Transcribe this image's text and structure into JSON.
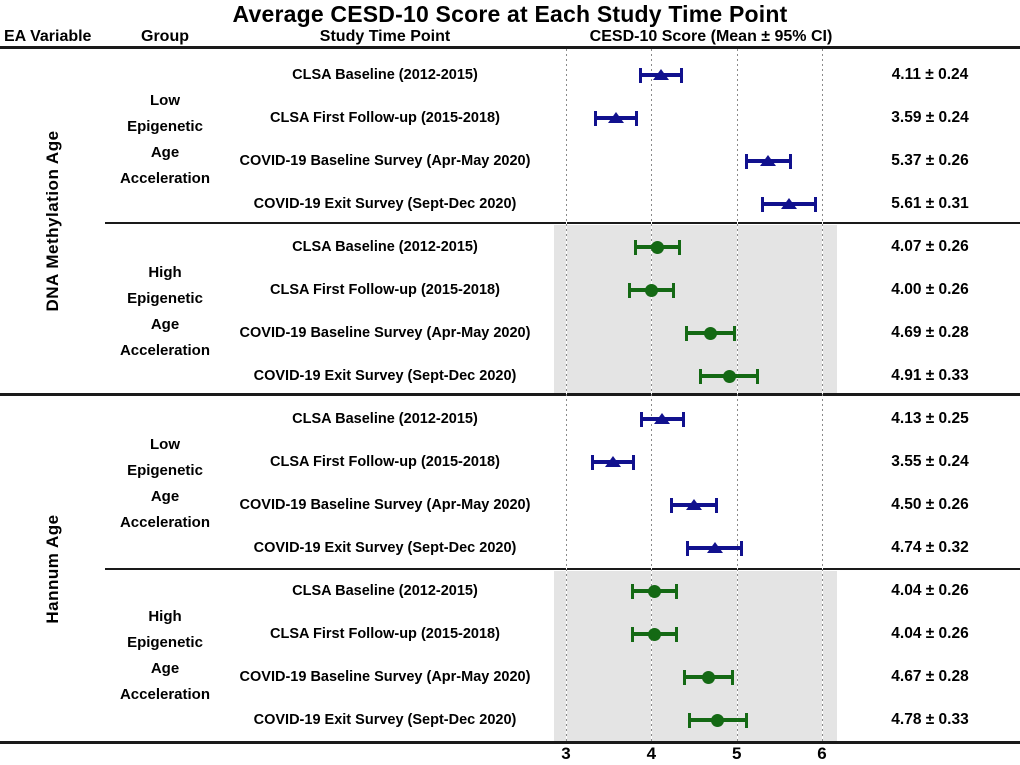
{
  "title": "Average CESD-10 Score at Each Study Time Point",
  "headers": {
    "ea_variable": "EA Variable",
    "group": "Group",
    "time_point": "Study Time Point",
    "score": "CESD-10 Score (Mean ± 95% CI)"
  },
  "colors": {
    "low_marker": "#11118e",
    "high_marker": "#146914",
    "high_panel_bg": "#e4e4e4",
    "line": "#1a1a1a",
    "gridline": "#8a8a8a"
  },
  "chart_data": {
    "type": "scatter",
    "subtype": "forest-plot",
    "title": "Average CESD-10 Score at Each Study Time Point",
    "xlabel": "CESD-10 Score (Mean ± 95% CI)",
    "xlim": [
      3,
      6
    ],
    "axis_ticks": [
      3,
      4,
      5,
      6
    ],
    "grid": "dotted-vertical",
    "legend": "none",
    "sections": [
      {
        "ea_variable": "DNA Methylation Age",
        "groups": [
          {
            "label": "Low Epigenetic Age Acceleration",
            "label_lines": [
              "Low",
              "Epigenetic",
              "Age",
              "Acceleration"
            ],
            "marker": "triangle",
            "color": "#11118e",
            "shaded": false,
            "rows": [
              {
                "time_point": "CLSA Baseline (2012-2015)",
                "mean": 4.11,
                "ci": 0.24,
                "value_text": "4.11 ± 0.24"
              },
              {
                "time_point": "CLSA First Follow-up (2015-2018)",
                "mean": 3.59,
                "ci": 0.24,
                "value_text": "3.59 ± 0.24"
              },
              {
                "time_point": "COVID-19 Baseline Survey (Apr-May 2020)",
                "mean": 5.37,
                "ci": 0.26,
                "value_text": "5.37 ± 0.26"
              },
              {
                "time_point": "COVID-19 Exit Survey (Sept-Dec 2020)",
                "mean": 5.61,
                "ci": 0.31,
                "value_text": "5.61 ± 0.31"
              }
            ]
          },
          {
            "label": "High Epigenetic Age Acceleration",
            "label_lines": [
              "High",
              "Epigenetic",
              "Age",
              "Acceleration"
            ],
            "marker": "circle",
            "color": "#146914",
            "shaded": true,
            "rows": [
              {
                "time_point": "CLSA Baseline (2012-2015)",
                "mean": 4.07,
                "ci": 0.26,
                "value_text": "4.07 ± 0.26"
              },
              {
                "time_point": "CLSA First Follow-up (2015-2018)",
                "mean": 4.0,
                "ci": 0.26,
                "value_text": "4.00 ± 0.26"
              },
              {
                "time_point": "COVID-19 Baseline Survey (Apr-May 2020)",
                "mean": 4.69,
                "ci": 0.28,
                "value_text": "4.69 ± 0.28"
              },
              {
                "time_point": "COVID-19 Exit Survey (Sept-Dec 2020)",
                "mean": 4.91,
                "ci": 0.33,
                "value_text": "4.91 ± 0.33"
              }
            ]
          }
        ]
      },
      {
        "ea_variable": "Hannum Age",
        "groups": [
          {
            "label": "Low Epigenetic Age Acceleration",
            "label_lines": [
              "Low",
              "Epigenetic",
              "Age",
              "Acceleration"
            ],
            "marker": "triangle",
            "color": "#11118e",
            "shaded": false,
            "rows": [
              {
                "time_point": "CLSA Baseline (2012-2015)",
                "mean": 4.13,
                "ci": 0.25,
                "value_text": "4.13 ± 0.25"
              },
              {
                "time_point": "CLSA First Follow-up (2015-2018)",
                "mean": 3.55,
                "ci": 0.24,
                "value_text": "3.55 ± 0.24"
              },
              {
                "time_point": "COVID-19 Baseline Survey (Apr-May 2020)",
                "mean": 4.5,
                "ci": 0.26,
                "value_text": "4.50 ± 0.26"
              },
              {
                "time_point": "COVID-19 Exit Survey (Sept-Dec 2020)",
                "mean": 4.74,
                "ci": 0.32,
                "value_text": "4.74 ± 0.32"
              }
            ]
          },
          {
            "label": "High Epigenetic Age Acceleration",
            "label_lines": [
              "High",
              "Epigenetic",
              "Age",
              "Acceleration"
            ],
            "marker": "circle",
            "color": "#146914",
            "shaded": true,
            "rows": [
              {
                "time_point": "CLSA Baseline (2012-2015)",
                "mean": 4.04,
                "ci": 0.26,
                "value_text": "4.04 ± 0.26"
              },
              {
                "time_point": "CLSA First Follow-up (2015-2018)",
                "mean": 4.04,
                "ci": 0.26,
                "value_text": "4.04 ± 0.26"
              },
              {
                "time_point": "COVID-19 Baseline Survey (Apr-May 2020)",
                "mean": 4.67,
                "ci": 0.28,
                "value_text": "4.67 ± 0.28"
              },
              {
                "time_point": "COVID-19 Exit Survey (Sept-Dec 2020)",
                "mean": 4.78,
                "ci": 0.33,
                "value_text": "4.78 ± 0.33"
              }
            ]
          }
        ]
      }
    ]
  }
}
